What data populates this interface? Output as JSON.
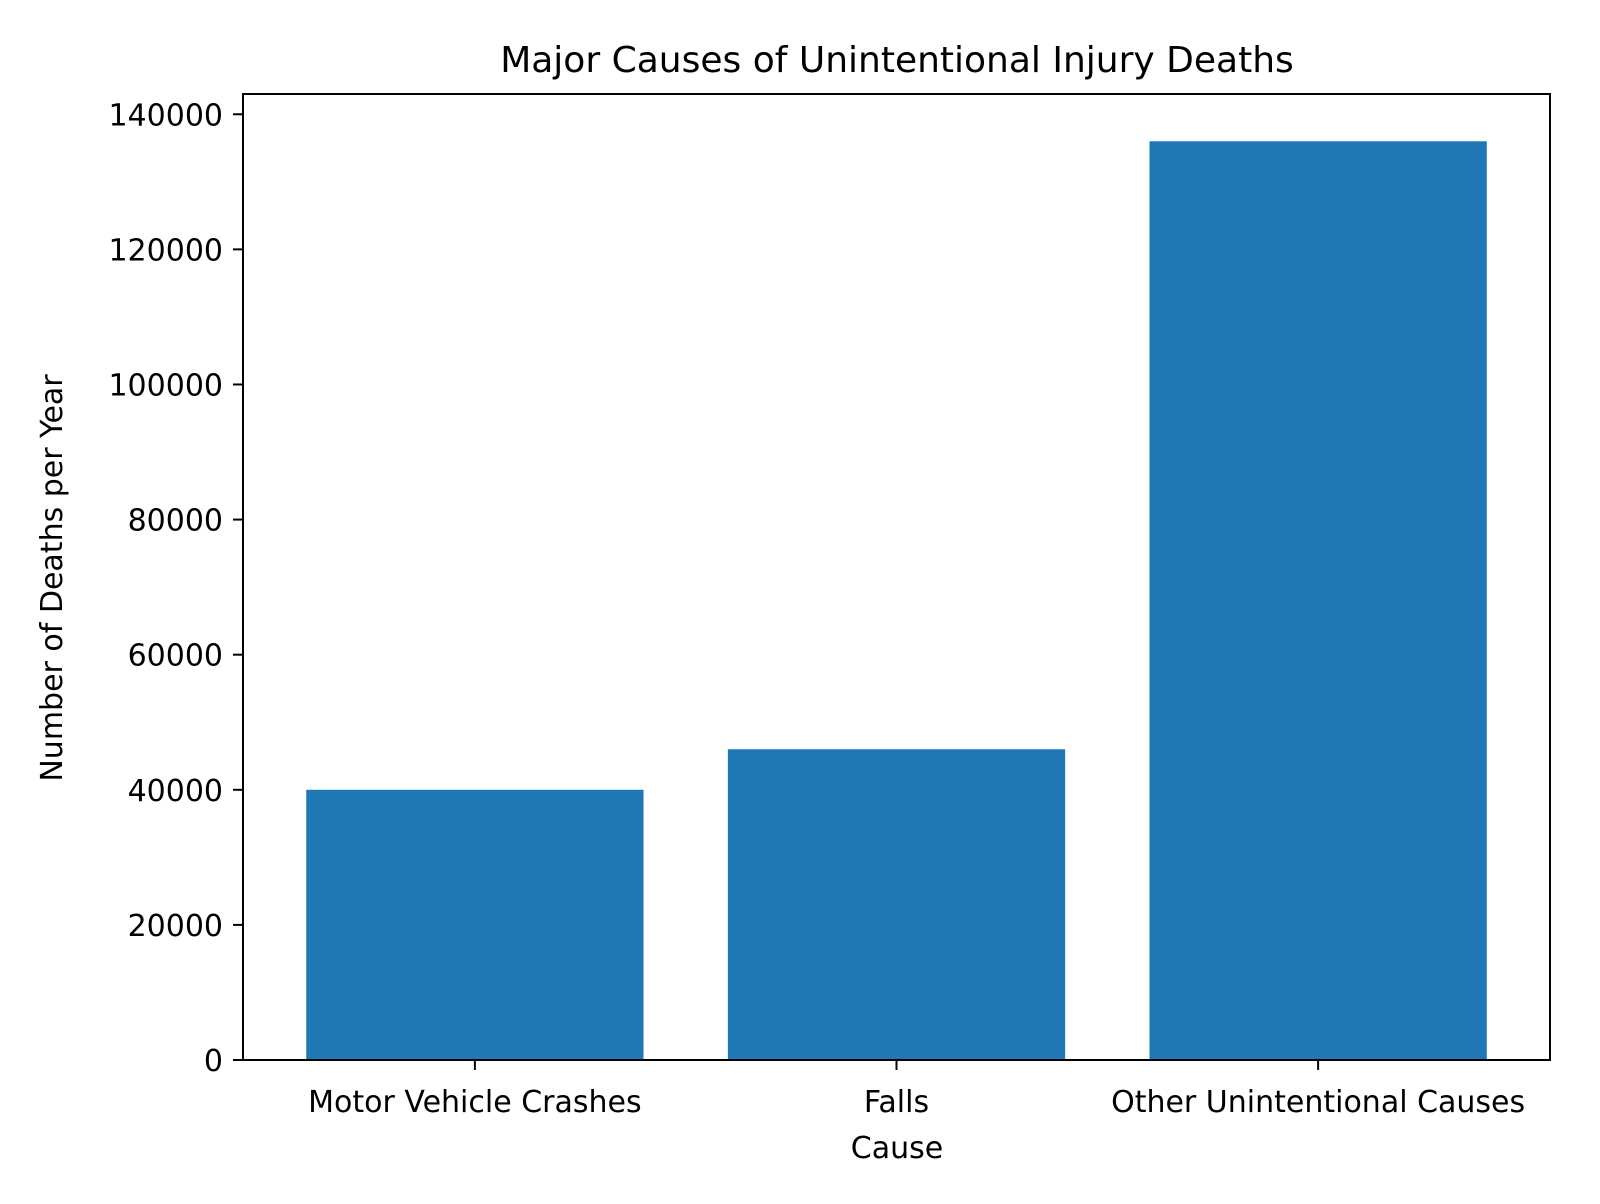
{
  "chart_data": {
    "type": "bar",
    "title": "Major Causes of Unintentional Injury Deaths",
    "xlabel": "Cause",
    "ylabel": "Number of Deaths per Year",
    "categories": [
      "Motor Vehicle Crashes",
      "Falls",
      "Other Unintentional Causes"
    ],
    "values": [
      40000,
      46000,
      136000
    ],
    "ylim": [
      0,
      143000
    ],
    "yticks": [
      0,
      20000,
      40000,
      60000,
      80000,
      100000,
      120000,
      140000
    ],
    "ytick_labels": [
      "0",
      "20000",
      "40000",
      "60000",
      "80000",
      "100000",
      "120000",
      "140000"
    ],
    "grid": false,
    "colors": {
      "bar": "#1f77b4",
      "axis": "#000000"
    }
  }
}
